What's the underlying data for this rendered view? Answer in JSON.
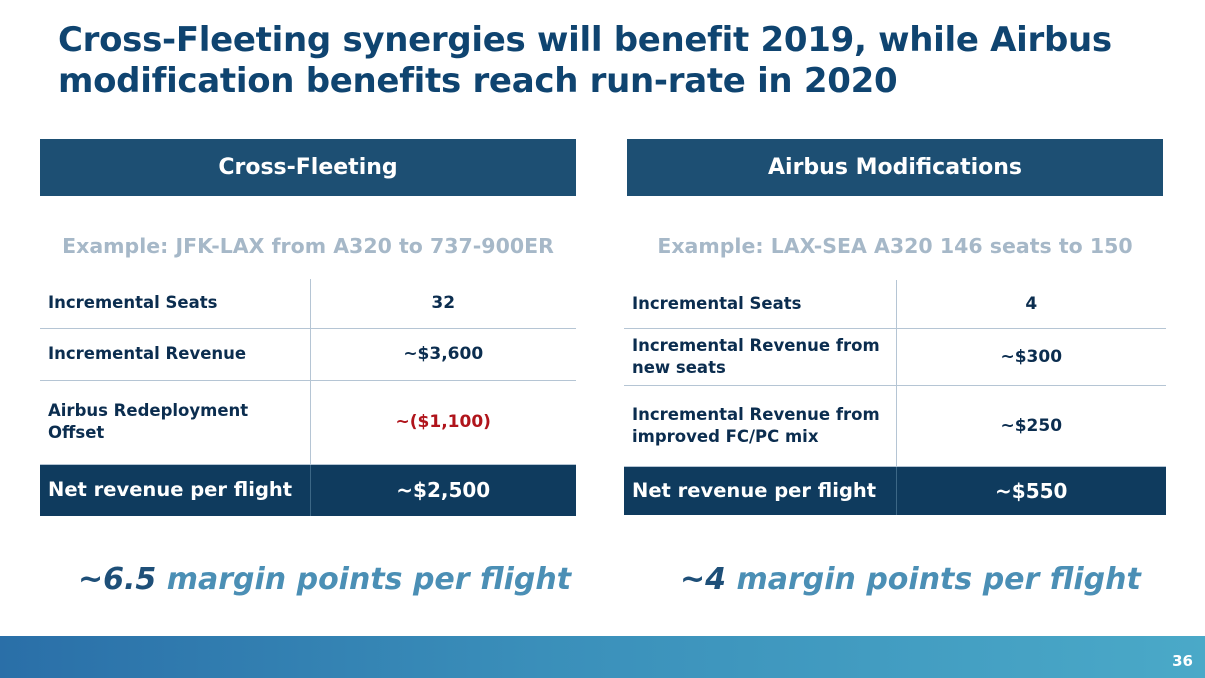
{
  "slide": {
    "title": "Cross-Fleeting synergies will benefit 2019, while Airbus modification benefits reach run-rate in 2020",
    "page_number": "36"
  },
  "left_panel": {
    "header": "Cross-Fleeting",
    "example": "Example: JFK-LAX from A320 to 737-900ER",
    "rows": [
      {
        "label": "Incremental Seats",
        "value": "32"
      },
      {
        "label": "Incremental Revenue",
        "value": "~$3,600"
      },
      {
        "label": "Airbus Redeployment Offset",
        "value": "~($1,100)"
      }
    ],
    "net": {
      "label": "Net revenue per flight",
      "value": "~$2,500"
    },
    "margin": {
      "amount": "~6.5",
      "rest": "margin points per flight"
    }
  },
  "right_panel": {
    "header": "Airbus Modifications",
    "example": "Example: LAX-SEA A320 146 seats to 150",
    "rows": [
      {
        "label": "Incremental Seats",
        "value": "4"
      },
      {
        "label": "Incremental Revenue from new seats",
        "value": "~$300"
      },
      {
        "label": "Incremental Revenue from improved FC/PC mix",
        "value": "~$250"
      }
    ],
    "net": {
      "label": "Net revenue per flight",
      "value": "~$550"
    },
    "margin": {
      "amount": "~4",
      "rest": "margin points per flight"
    }
  },
  "colors": {
    "title": "#0f4470",
    "header_bg": "#1d4f73",
    "net_row_bg": "#0f3b5e",
    "negative_value": "#b0141b",
    "example_text": "#a6b8c8",
    "margin_amount": "#1e4f78",
    "margin_text": "#4b8fb5"
  }
}
